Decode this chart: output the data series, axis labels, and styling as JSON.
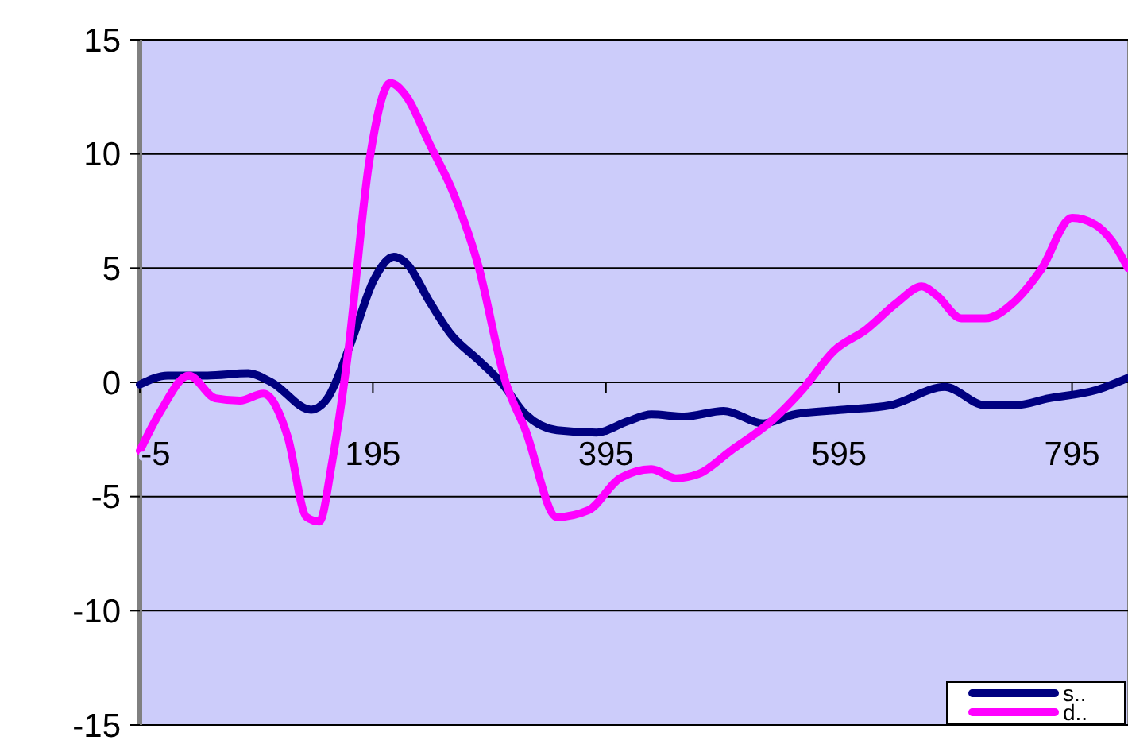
{
  "chart_data": {
    "type": "line",
    "x": [
      -5,
      19,
      53,
      88,
      108,
      142,
      156,
      176,
      196,
      213,
      224,
      244,
      262,
      285,
      305,
      326,
      353,
      387,
      414,
      434,
      462,
      496,
      530,
      557,
      598,
      639,
      686,
      720,
      747,
      775,
      815,
      843
    ],
    "xlim": [
      -5,
      843
    ],
    "xticks": [
      -5,
      195,
      395,
      595,
      795
    ],
    "ylim": [
      -15,
      15
    ],
    "yticks": [
      -15,
      -10,
      -5,
      0,
      5,
      10,
      15
    ],
    "grid": "y",
    "legend": "bottom right",
    "line_style": "solid",
    "marker": "none",
    "series": [
      {
        "name": "s..",
        "color": "#000080",
        "values": [
          -0.1,
          0.3,
          0.3,
          0.4,
          0,
          -1.2,
          -0.7,
          1.7,
          4.5,
          5.5,
          5.2,
          3.5,
          2.1,
          1.0,
          0,
          -1.4,
          -2.1,
          -2.2,
          -1.7,
          -1.4,
          -1.5,
          -1.25,
          -1.8,
          -1.4,
          -1.2,
          -1.0,
          -0.2,
          -1.0,
          -1.0,
          -0.7,
          -0.35,
          0.2
        ]
      },
      {
        "name": "d..",
        "color": "#ff00ff",
        "x": [
          -5,
          13,
          37,
          60,
          81,
          101,
          122,
          138,
          149,
          160,
          173,
          192,
          210,
          224,
          244,
          264,
          285,
          309,
          326,
          353,
          380,
          407,
          434,
          455,
          475,
          502,
          537,
          564,
          591,
          618,
          645,
          666,
          679,
          700,
          720,
          747,
          768,
          795,
          815,
          829,
          843
        ],
        "values": [
          -3.0,
          -1.25,
          0.3,
          -0.7,
          -0.8,
          -0.5,
          -2.4,
          -5.9,
          -6.1,
          -3.5,
          1.0,
          9.7,
          13.1,
          12.5,
          10.4,
          8.3,
          5.2,
          0,
          -2.1,
          -5.9,
          -5.6,
          -4.2,
          -3.8,
          -4.2,
          -4.0,
          -3.0,
          -1.7,
          -0.3,
          1.4,
          2.3,
          3.5,
          4.2,
          3.8,
          2.8,
          2.8,
          3.6,
          4.9,
          7.2,
          6.9,
          6.2,
          5.0
        ]
      }
    ]
  }
}
